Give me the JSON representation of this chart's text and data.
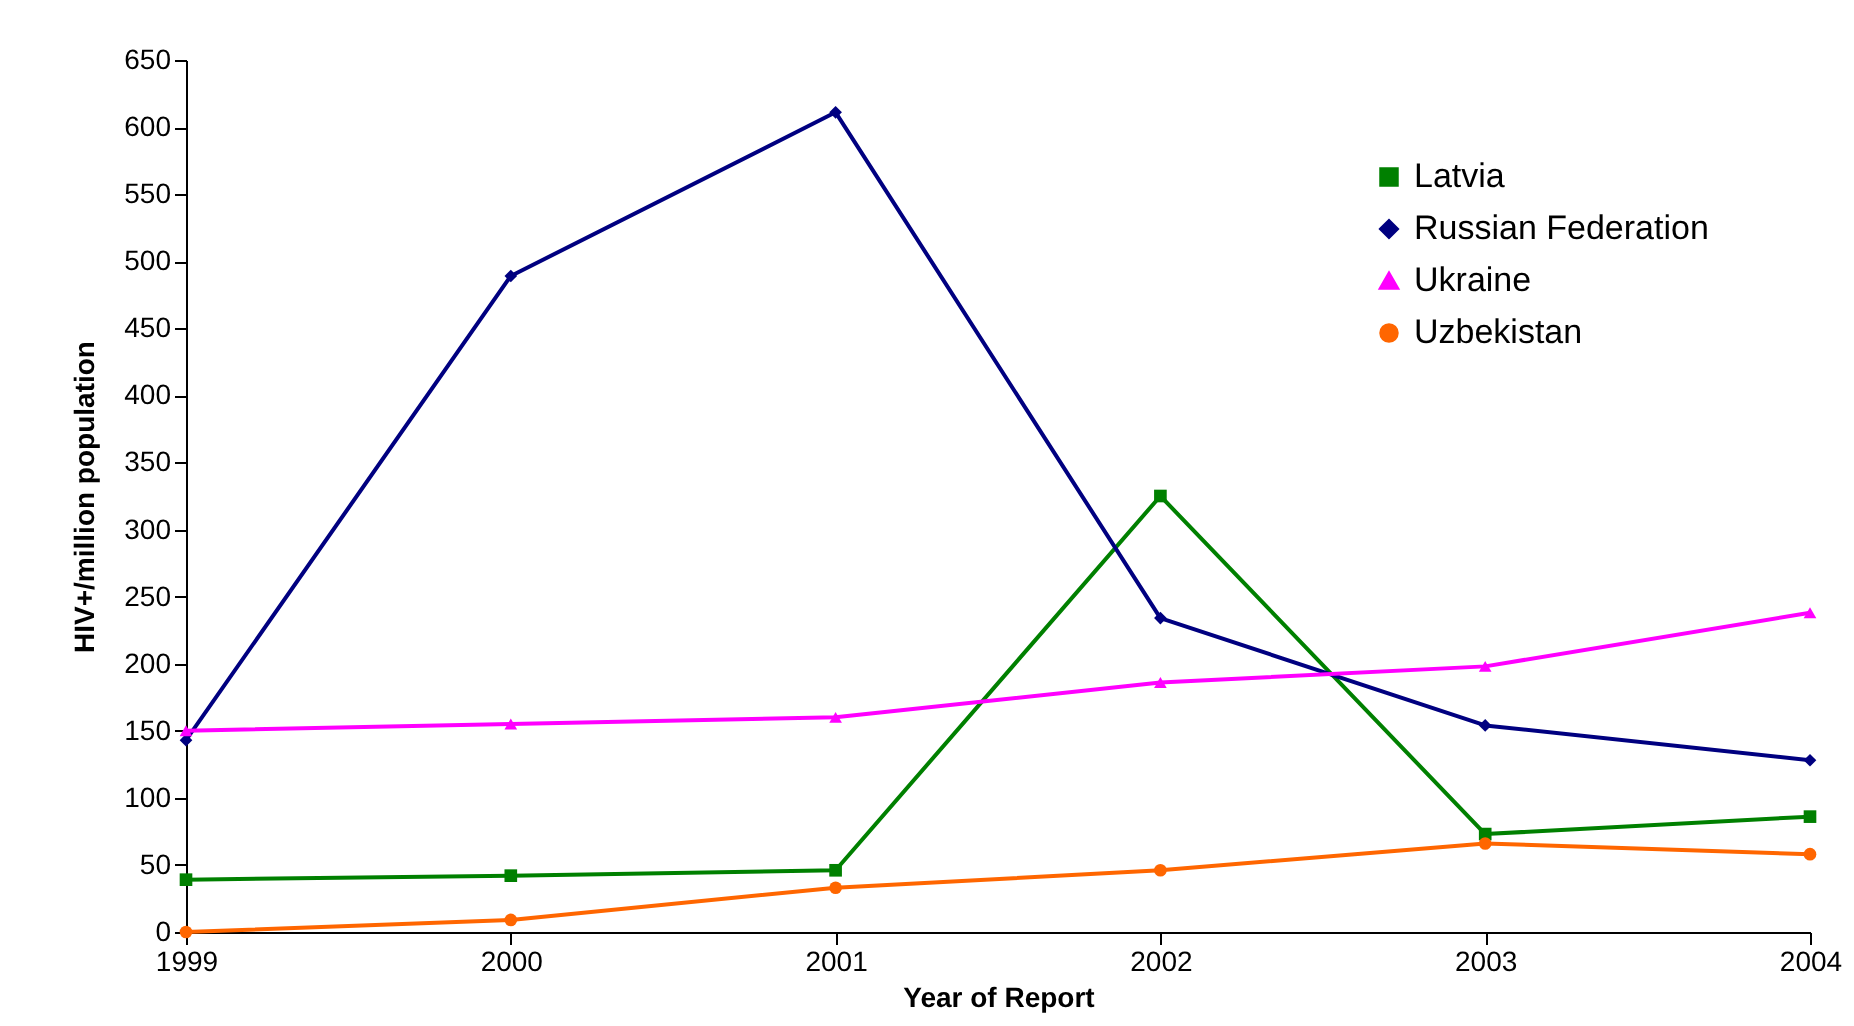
{
  "chart_data": {
    "type": "line",
    "xlabel": "Year of Report",
    "ylabel": "HIV+/million population",
    "categories": [
      "1999",
      "2000",
      "2001",
      "2002",
      "2003",
      "2004"
    ],
    "series": [
      {
        "name": "Latvia",
        "color": "#008000",
        "marker": "square",
        "values": [
          39,
          42,
          46,
          325,
          73,
          86
        ]
      },
      {
        "name": "Russian Federation",
        "color": "#000080",
        "marker": "diamond",
        "values": [
          143,
          489,
          611,
          234,
          154,
          128
        ]
      },
      {
        "name": "Ukraine",
        "color": "#ff00ff",
        "marker": "triangle",
        "values": [
          150,
          155,
          160,
          186,
          198,
          238
        ]
      },
      {
        "name": "Uzbekistan",
        "color": "#ff6600",
        "marker": "circle",
        "values": [
          0,
          9,
          33,
          46,
          66,
          58
        ]
      }
    ],
    "ylim": [
      0,
      650
    ],
    "yticks": [
      0,
      50,
      100,
      150,
      200,
      250,
      300,
      350,
      400,
      450,
      500,
      550,
      600,
      650
    ],
    "grid": false,
    "legend": "top right",
    "line_style": "solid"
  }
}
